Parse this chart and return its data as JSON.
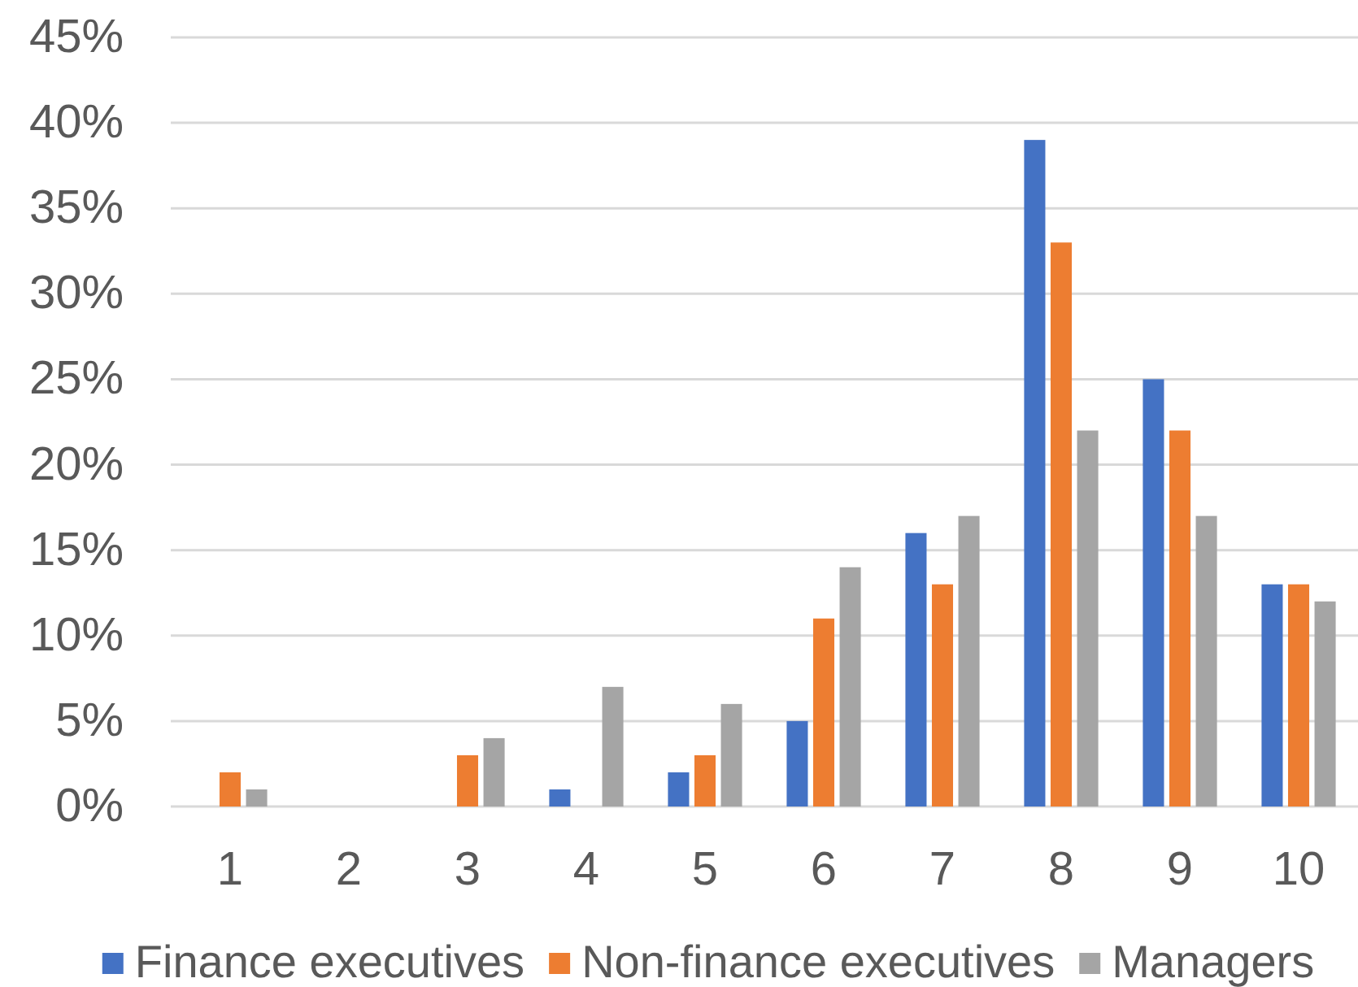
{
  "chart_data": {
    "type": "bar",
    "categories": [
      "1",
      "2",
      "3",
      "4",
      "5",
      "6",
      "7",
      "8",
      "9",
      "10"
    ],
    "series": [
      {
        "name": "Finance executives",
        "color": "#4472c4",
        "values": [
          0,
          0,
          0,
          1,
          2,
          5,
          16,
          39,
          25,
          13
        ]
      },
      {
        "name": "Non-finance executives",
        "color": "#ed7d31",
        "values": [
          2,
          0,
          3,
          0,
          3,
          11,
          13,
          33,
          22,
          13
        ]
      },
      {
        "name": "Managers",
        "color": "#a5a5a5",
        "values": [
          1,
          0,
          4,
          7,
          6,
          14,
          17,
          22,
          17,
          12
        ]
      }
    ],
    "ylim": [
      0,
      45
    ],
    "yticks": [
      {
        "value": 0,
        "label": "0%"
      },
      {
        "value": 5,
        "label": "5%"
      },
      {
        "value": 10,
        "label": "10%"
      },
      {
        "value": 15,
        "label": "15%"
      },
      {
        "value": 20,
        "label": "20%"
      },
      {
        "value": 25,
        "label": "25%"
      },
      {
        "value": 30,
        "label": "30%"
      },
      {
        "value": 35,
        "label": "35%"
      },
      {
        "value": 40,
        "label": "40%"
      },
      {
        "value": 45,
        "label": "45%"
      }
    ],
    "grid": "y",
    "legend": "bottom"
  }
}
